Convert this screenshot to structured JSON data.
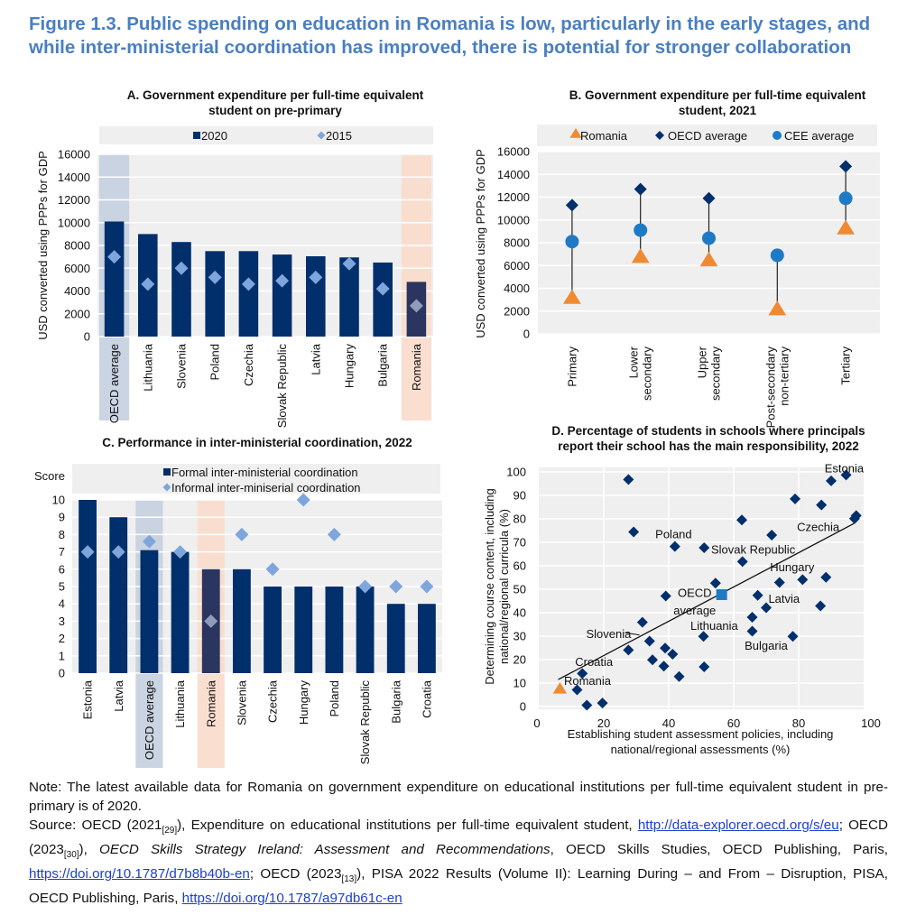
{
  "figure_title": "Figure 1.3. Public spending on education in Romania is low, particularly in the early stages, and while inter-ministerial coordination has improved, there is potential for stronger collaboration",
  "colors": {
    "navy": "#002f6c",
    "light_diamond": "#7ea6dc",
    "orange": "#f08a32",
    "cee": "#1f7ac6",
    "plot_bg": "#efefef",
    "oecd_band": "#c5cfdf",
    "romania_band": "#f9dccb",
    "title_blue": "#4a7fc1"
  },
  "chart_data": [
    {
      "id": "A",
      "type": "bar",
      "title": "A. Government expenditure per full-time equivalent",
      "title2": "student on pre-primary",
      "ylabel": "USD converted using PPPs for GDP",
      "ylim": [
        0,
        16000
      ],
      "yticks": [
        0,
        2000,
        4000,
        6000,
        8000,
        10000,
        12000,
        14000,
        16000
      ],
      "categories": [
        "OECD average",
        "Lithuania",
        "Slovenia",
        "Poland",
        "Czechia",
        "Slovak Republic",
        "Latvia",
        "Hungary",
        "Bulgaria",
        "Romania"
      ],
      "highlight": {
        "OECD average": "oecd",
        "Romania": "romania"
      },
      "series": [
        {
          "name": "2020",
          "kind": "bar",
          "values": [
            10100,
            9000,
            8300,
            7500,
            7500,
            7200,
            7050,
            6950,
            6500,
            4800
          ]
        },
        {
          "name": "2015",
          "kind": "diamond",
          "values": [
            7000,
            4600,
            6000,
            5200,
            4600,
            4900,
            5200,
            6400,
            4200,
            2700
          ]
        }
      ],
      "legend": "top"
    },
    {
      "id": "B",
      "type": "scatter",
      "title": "B. Government expenditure per full-time equivalent",
      "title2": "student, 2021",
      "ylabel": "USD converted using PPPs for GDP",
      "ylim": [
        0,
        16000
      ],
      "yticks": [
        0,
        2000,
        4000,
        6000,
        8000,
        10000,
        12000,
        14000,
        16000
      ],
      "categories": [
        [
          "Primary"
        ],
        [
          "Lower",
          "secondary"
        ],
        [
          "Upper",
          "secondary"
        ],
        [
          "Post-secondary",
          "non-tertiary"
        ],
        [
          "Tertiary"
        ]
      ],
      "series": [
        {
          "name": "Romania",
          "marker": "triangle",
          "values": [
            3200,
            6800,
            6500,
            2200,
            9300
          ]
        },
        {
          "name": "OECD average",
          "marker": "diamond",
          "values": [
            11300,
            12700,
            11900,
            null,
            14700
          ]
        },
        {
          "name": "CEE average",
          "marker": "circle",
          "values": [
            8100,
            9100,
            8400,
            6900,
            11900
          ]
        }
      ],
      "legend": "top"
    },
    {
      "id": "C",
      "type": "bar",
      "title": "C. Performance in inter-ministerial coordination, 2022",
      "ylabel": "Score",
      "ylim": [
        0,
        10
      ],
      "yticks": [
        0,
        1,
        2,
        3,
        4,
        5,
        6,
        7,
        8,
        9,
        10
      ],
      "categories": [
        "Estonia",
        "Latvia",
        "OECD average",
        "Lithuania",
        "Romania",
        "Slovenia",
        "Czechia",
        "Hungary",
        "Poland",
        "Slovak Republic",
        "Bulgaria",
        "Croatia"
      ],
      "highlight": {
        "OECD average": "oecd",
        "Romania": "romania"
      },
      "series": [
        {
          "name": "Formal inter-ministerial coordination",
          "kind": "bar",
          "values": [
            10,
            9,
            7.1,
            7,
            6,
            6,
            5,
            5,
            5,
            5,
            4,
            4
          ]
        },
        {
          "name": "Informal inter-miniserial coordination",
          "kind": "diamond",
          "values": [
            7,
            7,
            7.6,
            7,
            3,
            8,
            6,
            10,
            8,
            5,
            5,
            5
          ]
        }
      ],
      "legend": "top"
    },
    {
      "id": "D",
      "type": "scatter",
      "title": "D. Percentage of students in schools where principals",
      "title2": "report their school has the main responsibility, 2022",
      "xlabel": "Establishing student assessment policies, including",
      "xlabel2": "national/regional assessments (%)",
      "ylabel": "Determining course content, including",
      "ylabel2": "national/regional curricula (%)",
      "xlim": [
        0,
        100
      ],
      "ylim": [
        0,
        100
      ],
      "xticks": [
        0,
        20,
        40,
        60,
        80,
        100
      ],
      "yticks": [
        0,
        10,
        20,
        30,
        40,
        50,
        60,
        70,
        80,
        90,
        100
      ],
      "points": [
        [
          27.6,
          96.8
        ],
        [
          29.2,
          74.4
        ],
        [
          41.9,
          68.2
        ],
        [
          50.9,
          67.7
        ],
        [
          54.4,
          52.6
        ],
        [
          39.1,
          47.1
        ],
        [
          31.9,
          35.9
        ],
        [
          34.1,
          27.9
        ],
        [
          27.6,
          24.1
        ],
        [
          38.9,
          24.9
        ],
        [
          41.2,
          22.3
        ],
        [
          35,
          19.9
        ],
        [
          38.5,
          17.2
        ],
        [
          50.9,
          16.9
        ],
        [
          43.2,
          12.8
        ],
        [
          13.4,
          14.1
        ],
        [
          11.8,
          7.1
        ],
        [
          14.8,
          0.6
        ],
        [
          19.6,
          1.5
        ],
        [
          50.7,
          29.9
        ],
        [
          62.5,
          79.5
        ],
        [
          62.7,
          61.8
        ],
        [
          71.7,
          73.1
        ],
        [
          67.4,
          47.4
        ],
        [
          70,
          42.1
        ],
        [
          65.7,
          38.1
        ],
        [
          65.7,
          32.1
        ],
        [
          78.2,
          29.9
        ],
        [
          74.1,
          52.9
        ],
        [
          81.2,
          54.1
        ],
        [
          88.4,
          55.1
        ],
        [
          86.7,
          42.9
        ],
        [
          78.9,
          88.5
        ],
        [
          87,
          85.9
        ],
        [
          90,
          96.2
        ],
        [
          94.6,
          98.7
        ],
        [
          97.2,
          80.1
        ],
        [
          97.7,
          81.4
        ]
      ],
      "oecd_average": [
        56.3,
        47.7
      ],
      "romania": [
        6.5,
        7.7
      ],
      "trendline": [
        [
          6,
          11.5
        ],
        [
          97,
          78
        ]
      ],
      "labels": [
        {
          "text": "Estonia",
          "x": 94,
          "y": 101.5
        },
        {
          "text": "Czechia",
          "x": 86,
          "y": 76.5
        },
        {
          "text": "Poland",
          "x": 41.5,
          "y": 73.5
        },
        {
          "text": "Slovak Republic",
          "x": 66,
          "y": 67
        },
        {
          "text": "Hungary",
          "x": 78,
          "y": 59.5
        },
        {
          "text": "Latvia",
          "x": 75.5,
          "y": 46
        },
        {
          "text": "OECD",
          "x": 48,
          "y": 48.5
        },
        {
          "text": "average",
          "x": 48,
          "y": 41
        },
        {
          "text": "Lithuania",
          "x": 54,
          "y": 34.5
        },
        {
          "text": "Bulgaria",
          "x": 70,
          "y": 26
        },
        {
          "text": "Slovenia",
          "x": 21.5,
          "y": 31
        },
        {
          "text": "Croatia",
          "x": 17,
          "y": 19
        },
        {
          "text": "Romania",
          "x": 15,
          "y": 11
        }
      ]
    }
  ],
  "notes": {
    "note": "Note: The latest available data for Romania on government expenditure on educational institutions per full-time equivalent student in pre-primary is of 2020.",
    "source_1": "Source: OECD (2021",
    "ref_29": "[29]",
    "source_2": "), Expenditure on educational institutions per full-time equivalent student, ",
    "link_1": "http://data-explorer.oecd.org/s/eu",
    "source_3": "; OECD (2023",
    "ref_30": "[30]",
    "source_4": "), ",
    "source_italic": "OECD Skills Strategy Ireland: Assessment and Recommendations",
    "source_5": ", OECD Skills Studies, OECD Publishing, Paris, ",
    "link_2": "https://doi.org/10.1787/d7b8b40b-en",
    "source_6": "; OECD (2023",
    "ref_13": "[13]",
    "source_7": "), PISA 2022 Results (Volume II): Learning During – and From – Disruption, PISA, OECD Publishing, Paris, ",
    "link_3": "https://doi.org/10.1787/a97db61c-en"
  }
}
